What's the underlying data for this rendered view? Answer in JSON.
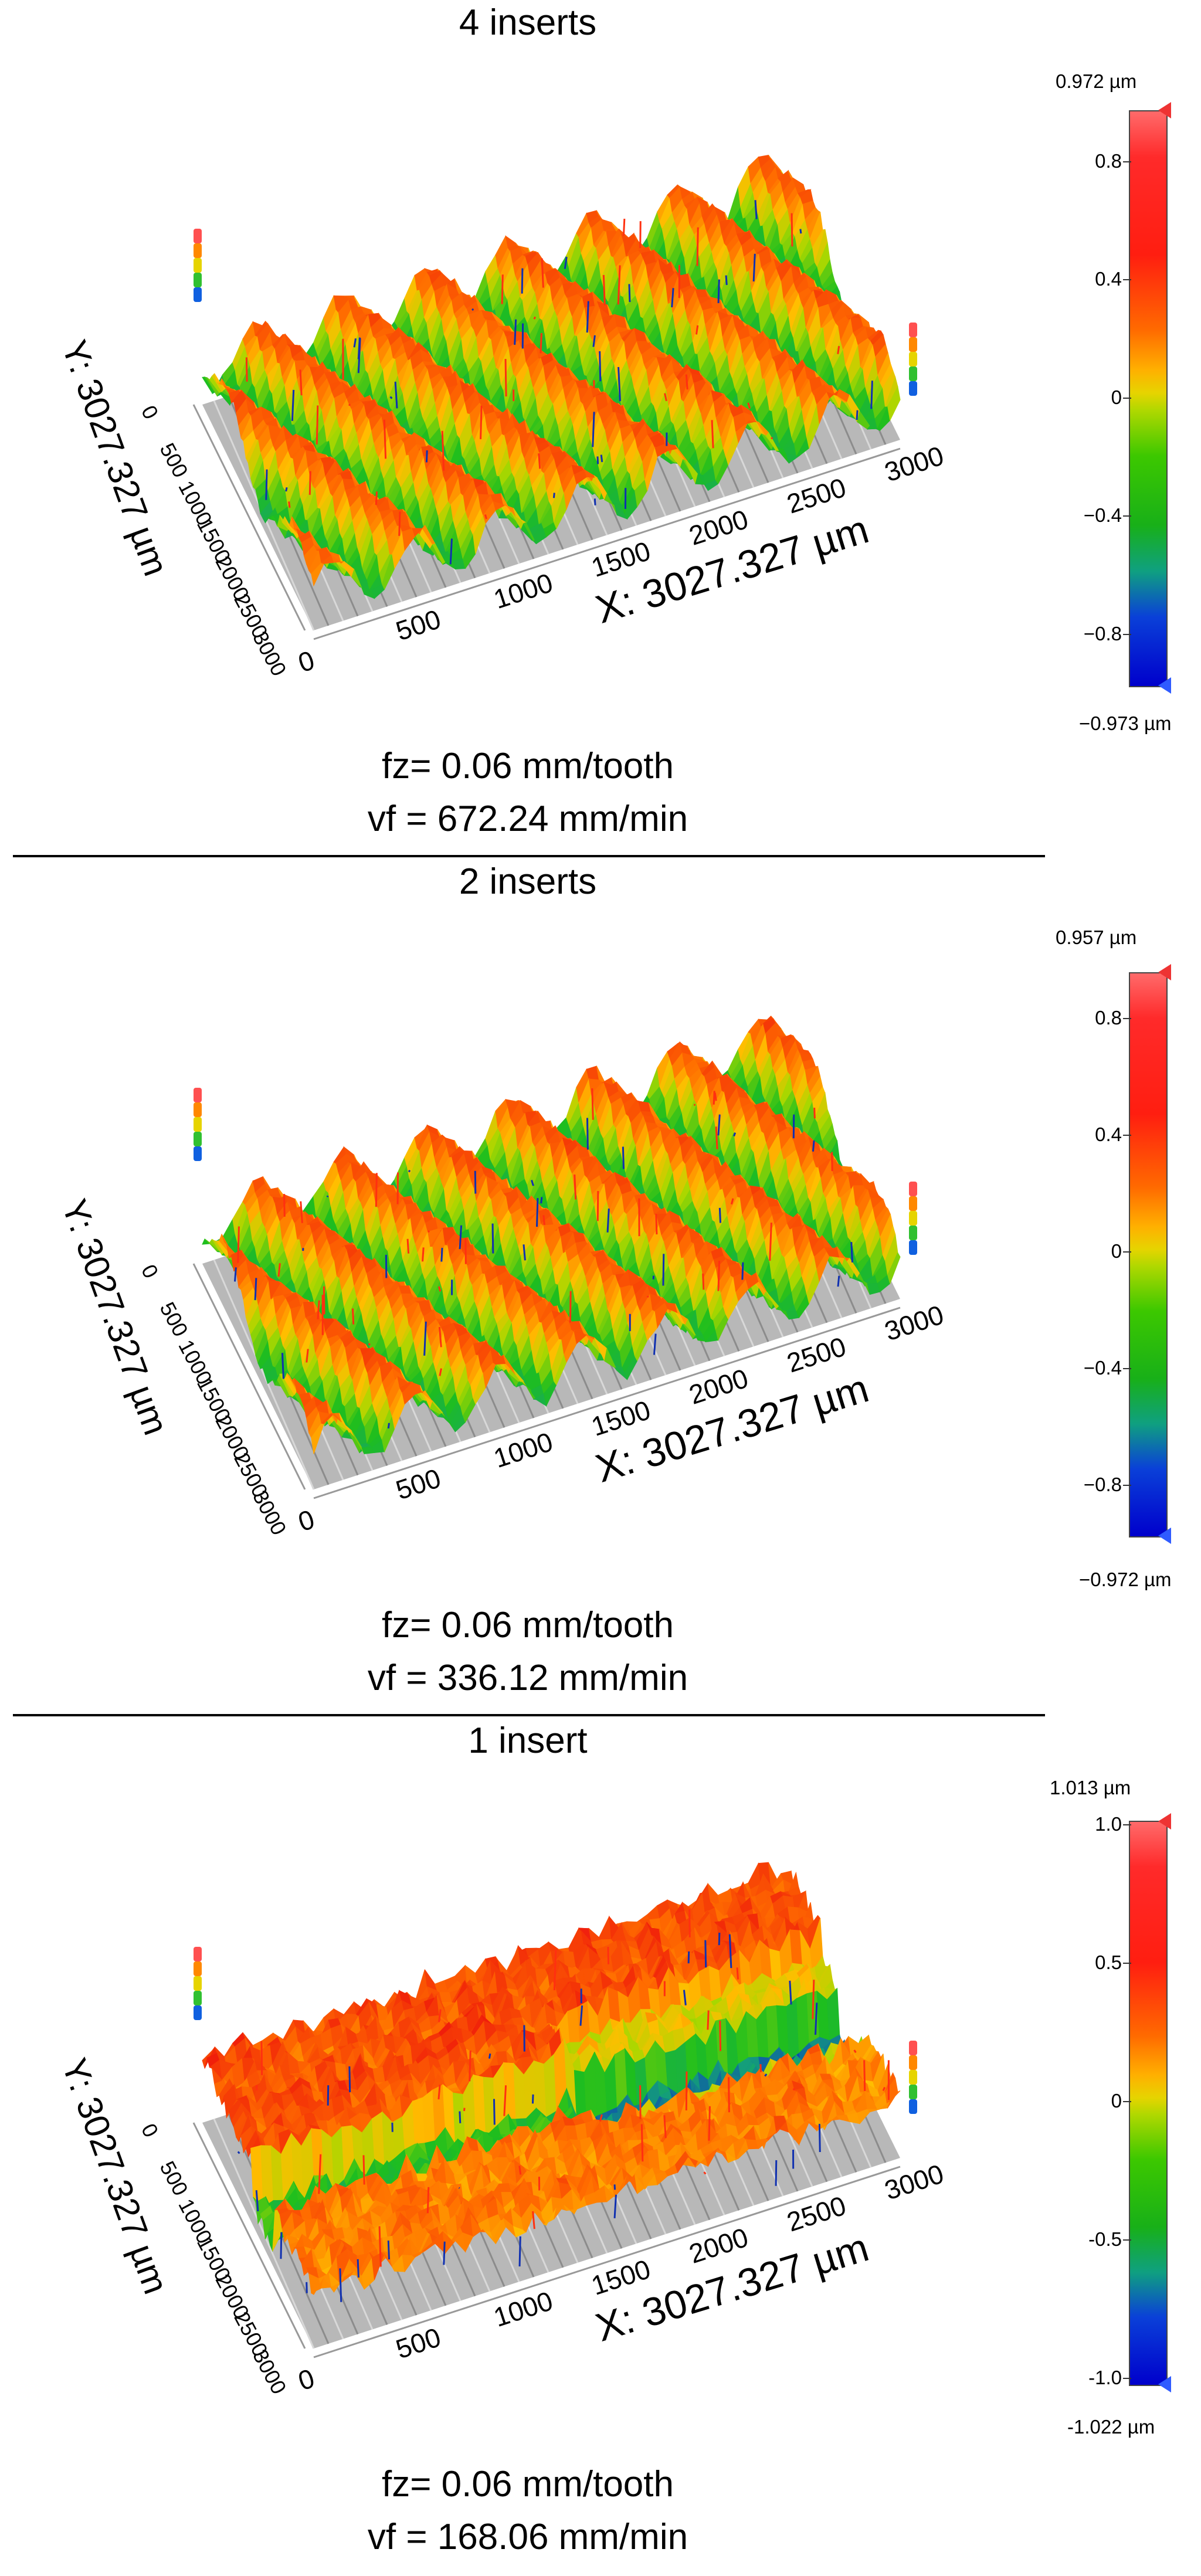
{
  "panels": [
    {
      "title": "4 inserts",
      "fz": "fz= 0.06 mm/tooth",
      "vf": "vf = 672.24 mm/min",
      "y_axis_label": "Y: 3027.327 µm",
      "x_axis_label": "X: 3027.327 µm",
      "x_ticks": [
        "0",
        "500",
        "1000",
        "1500",
        "2000",
        "2500",
        "3000"
      ],
      "y_ticks": [
        "0",
        "500",
        "1000",
        "1500",
        "2000",
        "2500",
        "3000"
      ],
      "colorbar": {
        "max": "0.972 µm",
        "min": "−0.973 µm",
        "ticks": [
          "0.8",
          "0.4",
          "0",
          "−0.4",
          "−0.8"
        ],
        "tick_values": [
          0.8,
          0.4,
          0,
          -0.4,
          -0.8
        ],
        "range": [
          -0.973,
          0.972
        ]
      }
    },
    {
      "title": "2 inserts",
      "fz": "fz= 0.06 mm/tooth",
      "vf": "vf = 336.12 mm/min",
      "y_axis_label": "Y: 3027.327 µm",
      "x_axis_label": "X: 3027.327 µm",
      "x_ticks": [
        "0",
        "500",
        "1000",
        "1500",
        "2000",
        "2500",
        "3000"
      ],
      "y_ticks": [
        "0",
        "500",
        "1000",
        "1500",
        "2000",
        "2500",
        "3000"
      ],
      "colorbar": {
        "max": "0.957 µm",
        "min": "−0.972 µm",
        "ticks": [
          "0.8",
          "0.4",
          "0",
          "−0.4",
          "−0.8"
        ],
        "tick_values": [
          0.8,
          0.4,
          0,
          -0.4,
          -0.8
        ],
        "range": [
          -0.972,
          0.957
        ]
      }
    },
    {
      "title": "1 insert",
      "fz": "fz= 0.06 mm/tooth",
      "vf": "vf = 168.06 mm/min",
      "y_axis_label": "Y: 3027.327 µm",
      "x_axis_label": "X: 3027.327 µm",
      "x_ticks": [
        "0",
        "500",
        "1000",
        "1500",
        "2000",
        "2500",
        "3000"
      ],
      "y_ticks": [
        "0",
        "500",
        "1000",
        "1500",
        "2000",
        "2500",
        "3000"
      ],
      "colorbar": {
        "max": "1.013 µm",
        "min": "-1.022 µm",
        "ticks": [
          "1.0",
          "0.5",
          "0",
          "-0.5",
          "-1.0"
        ],
        "tick_values": [
          1.0,
          0.5,
          0,
          -0.5,
          -1.0
        ],
        "range": [
          -1.022,
          1.013
        ]
      }
    }
  ]
}
